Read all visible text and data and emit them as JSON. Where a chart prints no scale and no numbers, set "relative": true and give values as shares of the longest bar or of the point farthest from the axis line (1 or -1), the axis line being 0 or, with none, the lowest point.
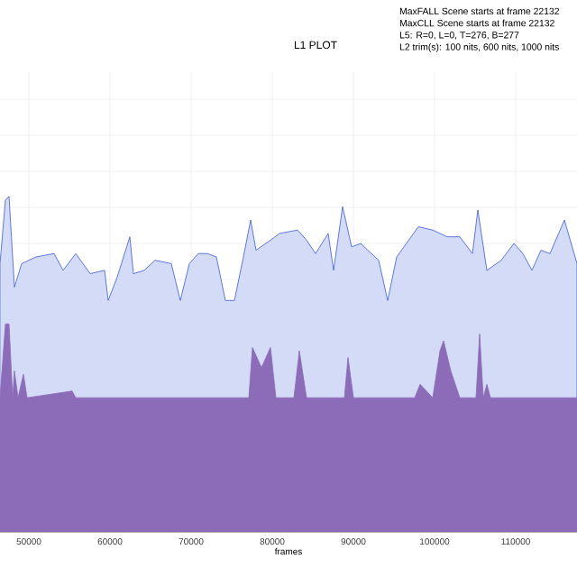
{
  "chart_data": {
    "type": "area",
    "title": "L1 PLOT",
    "xlabel": "frames",
    "relative": true,
    "annotations": [
      "MaxFALL Scene starts at frame 22132",
      "MaxCLL Scene starts at frame 22132",
      "L5: R=0, L=0, T=276, B=277",
      "L2 trim(s): 100 nits, 600 nits, 1000 nits"
    ],
    "xlim": [
      46444,
      117556
    ],
    "xticks": [
      50000,
      60000,
      70000,
      80000,
      90000,
      100000,
      110000
    ],
    "grid": true,
    "series": [
      {
        "color": "#3a5ad8",
        "x": [
          46444,
          47111,
          47556,
          48222,
          49111,
          50889,
          53111,
          54222,
          55778,
          57556,
          59333,
          59778,
          60889,
          62444,
          62889,
          64222,
          65556,
          67556,
          68667,
          69778,
          70889,
          72000,
          73111,
          74222,
          75333,
          76444,
          77333,
          78000,
          79778,
          80889,
          83111,
          84222,
          85333,
          86889,
          87556,
          88667,
          89778,
          90889,
          93111,
          94222,
          95333,
          98000,
          99778,
          101556,
          103111,
          104667,
          105333,
          106444,
          108222,
          109778,
          110889,
          112000,
          113111,
          114222,
          116000,
          117556
        ],
        "values": [
          0.8,
          0.99,
          1.0,
          0.73,
          0.8,
          0.82,
          0.83,
          0.78,
          0.83,
          0.77,
          0.78,
          0.69,
          0.76,
          0.88,
          0.77,
          0.78,
          0.81,
          0.8,
          0.69,
          0.8,
          0.83,
          0.83,
          0.82,
          0.69,
          0.69,
          0.82,
          0.93,
          0.84,
          0.87,
          0.89,
          0.9,
          0.87,
          0.83,
          0.89,
          0.78,
          0.97,
          0.85,
          0.86,
          0.81,
          0.69,
          0.82,
          0.91,
          0.9,
          0.88,
          0.88,
          0.83,
          0.96,
          0.78,
          0.81,
          0.86,
          0.83,
          0.78,
          0.84,
          0.83,
          0.93,
          0.8
        ]
      },
      {
        "color": "#8c6bb8",
        "x": [
          46444,
          47111,
          47556,
          48000,
          48222,
          48667,
          49333,
          49778,
          55333,
          55778,
          77111,
          77556,
          78667,
          79778,
          80444,
          82667,
          83333,
          84222,
          88889,
          89333,
          90000,
          97556,
          98222,
          99778,
          100667,
          101111,
          102000,
          103111,
          105111,
          105556,
          106000,
          106444,
          106889,
          117556
        ],
        "values": [
          0.4,
          0.62,
          0.62,
          0.4,
          0.48,
          0.4,
          0.47,
          0.4,
          0.42,
          0.4,
          0.4,
          0.55,
          0.49,
          0.55,
          0.4,
          0.4,
          0.54,
          0.4,
          0.4,
          0.52,
          0.4,
          0.4,
          0.44,
          0.4,
          0.54,
          0.57,
          0.48,
          0.4,
          0.4,
          0.59,
          0.4,
          0.44,
          0.4,
          0.4
        ]
      }
    ]
  }
}
